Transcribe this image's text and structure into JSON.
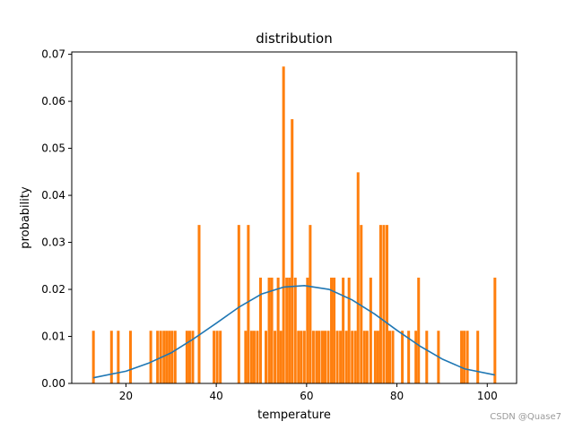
{
  "chart_data": {
    "type": "bar",
    "title": "distribution",
    "xlabel": "temperature",
    "ylabel": "probability",
    "xlim": [
      8,
      106.5
    ],
    "ylim": [
      0,
      0.0705
    ],
    "xticks": [
      20,
      40,
      60,
      80,
      100
    ],
    "xtick_labels": [
      "20",
      "40",
      "60",
      "80",
      "100"
    ],
    "yticks": [
      0.0,
      0.01,
      0.02,
      0.03,
      0.04,
      0.05,
      0.06,
      0.07
    ],
    "ytick_labels": [
      "0.00",
      "0.01",
      "0.02",
      "0.03",
      "0.04",
      "0.05",
      "0.06",
      "0.07"
    ],
    "grid": false,
    "bar_width": 0.6,
    "series": [
      {
        "type": "bar",
        "color": "#ff7f0e",
        "x": [
          12.8,
          16.8,
          18.3,
          21.0,
          25.5,
          27.0,
          27.7,
          28.4,
          29.0,
          29.6,
          30.2,
          30.9,
          33.5,
          34.1,
          34.8,
          36.2,
          39.5,
          40.2,
          40.9,
          45.0,
          46.5,
          47.1,
          47.8,
          48.4,
          49.1,
          49.8,
          51.0,
          51.7,
          52.3,
          53.0,
          53.7,
          54.3,
          54.9,
          55.6,
          56.2,
          56.8,
          57.5,
          58.2,
          58.8,
          59.5,
          60.2,
          60.8,
          61.5,
          62.2,
          62.8,
          63.5,
          64.1,
          64.8,
          65.5,
          66.1,
          66.8,
          67.5,
          68.1,
          68.8,
          69.4,
          70.1,
          70.8,
          71.4,
          72.1,
          72.8,
          73.4,
          74.2,
          75.2,
          75.8,
          76.4,
          77.1,
          77.8,
          78.4,
          79.1,
          81.2,
          82.6,
          84.2,
          84.8,
          86.6,
          89.2,
          94.3,
          94.9,
          95.6,
          97.9,
          101.7
        ],
        "values": [
          0.0112,
          0.0112,
          0.0112,
          0.0112,
          0.0112,
          0.0112,
          0.0112,
          0.0112,
          0.0112,
          0.0112,
          0.0112,
          0.0112,
          0.0112,
          0.0112,
          0.0112,
          0.0337,
          0.0112,
          0.0112,
          0.0112,
          0.0337,
          0.0112,
          0.0337,
          0.0112,
          0.0112,
          0.0112,
          0.0225,
          0.0112,
          0.0225,
          0.0225,
          0.0112,
          0.0225,
          0.0112,
          0.0674,
          0.0225,
          0.0225,
          0.0562,
          0.0225,
          0.0112,
          0.0112,
          0.0112,
          0.0225,
          0.0337,
          0.0112,
          0.0112,
          0.0112,
          0.0112,
          0.0112,
          0.0112,
          0.0225,
          0.0225,
          0.0112,
          0.0112,
          0.0225,
          0.0112,
          0.0225,
          0.0112,
          0.0112,
          0.0449,
          0.0337,
          0.0112,
          0.0112,
          0.0225,
          0.0112,
          0.0112,
          0.0337,
          0.0337,
          0.0337,
          0.0112,
          0.0112,
          0.0112,
          0.0112,
          0.0112,
          0.0225,
          0.0112,
          0.0112,
          0.0112,
          0.0112,
          0.0112,
          0.0112,
          0.0225
        ]
      },
      {
        "type": "line",
        "color": "#1f77b4",
        "x": [
          12.8,
          20,
          25,
          30,
          35,
          40,
          45,
          50,
          55,
          59.5,
          65,
          70,
          75,
          80,
          85,
          90,
          95,
          101.7
        ],
        "values": [
          0.0012,
          0.0026,
          0.0043,
          0.0065,
          0.0095,
          0.0128,
          0.0162,
          0.019,
          0.0205,
          0.0208,
          0.02,
          0.0178,
          0.0148,
          0.0113,
          0.008,
          0.0052,
          0.0031,
          0.0018
        ]
      }
    ]
  },
  "watermark": "CSDN @Quase7"
}
